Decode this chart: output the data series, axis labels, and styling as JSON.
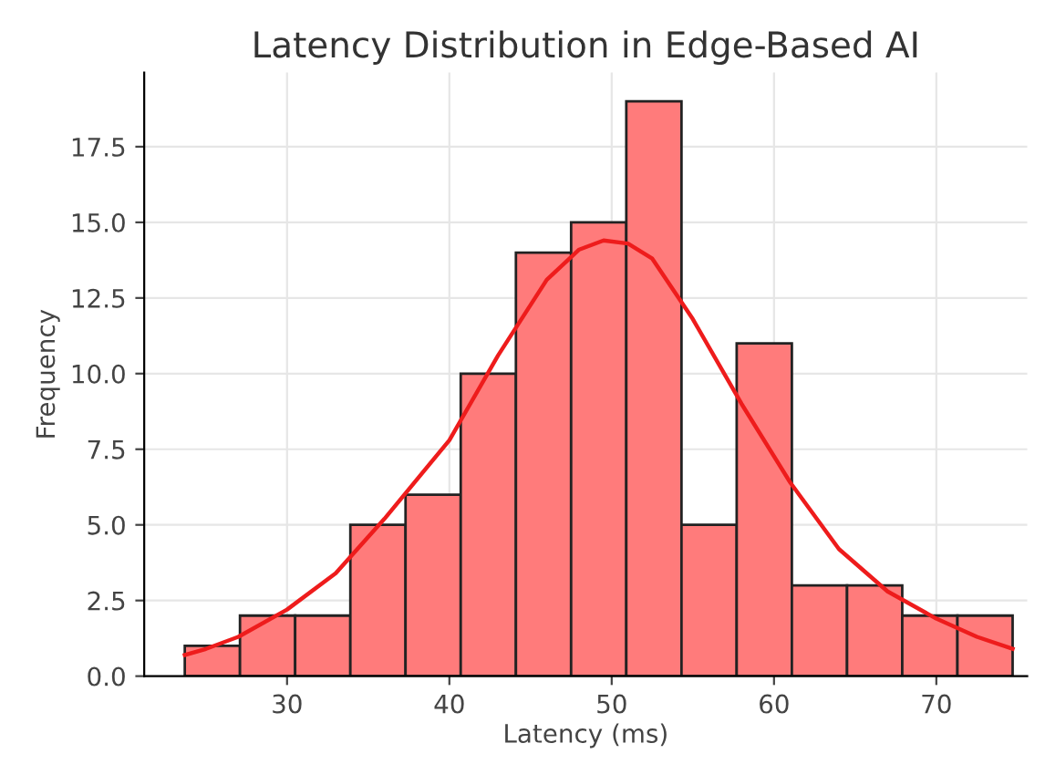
{
  "chart_data": {
    "type": "histogram",
    "title": "Latency Distribution in Edge-Based AI",
    "xlabel": "Latency (ms)",
    "ylabel": "Frequency",
    "bins": [
      23.7,
      27.1,
      30.5,
      33.9,
      37.3,
      40.7,
      44.1,
      47.5,
      50.9,
      54.3,
      57.7,
      61.1,
      64.5,
      67.9,
      71.3,
      74.7
    ],
    "values": [
      1,
      2,
      2,
      5,
      6,
      10,
      14,
      15,
      19,
      5,
      11,
      3,
      3,
      2,
      2
    ],
    "color": "#ff7b7b",
    "series": [
      {
        "type": "line",
        "color": "#ee1c1c",
        "x": [
          23.7,
          25,
          27,
          30,
          33,
          36,
          40,
          43,
          46,
          48,
          49.5,
          51,
          52.5,
          55,
          58,
          61,
          64,
          67,
          70,
          72.5,
          74.7
        ],
        "values": [
          0.7,
          0.9,
          1.3,
          2.2,
          3.4,
          5.2,
          7.8,
          10.6,
          13.1,
          14.1,
          14.4,
          14.3,
          13.8,
          11.8,
          9.0,
          6.4,
          4.2,
          2.8,
          1.9,
          1.3,
          0.9
        ]
      }
    ],
    "xlim": [
      21.2,
      75.6
    ],
    "ylim": [
      0,
      19.95
    ],
    "xticks": [
      30,
      40,
      50,
      60,
      70
    ],
    "yticks": [
      {
        "value": 0,
        "label": "0.0"
      },
      {
        "value": 2.5,
        "label": "2.5"
      },
      {
        "value": 5,
        "label": "5.0"
      },
      {
        "value": 7.5,
        "label": "7.5"
      },
      {
        "value": 10,
        "label": "10.0"
      },
      {
        "value": 12.5,
        "label": "12.5"
      },
      {
        "value": 15,
        "label": "15.0"
      },
      {
        "value": 17.5,
        "label": "17.5"
      }
    ],
    "grid": true
  }
}
